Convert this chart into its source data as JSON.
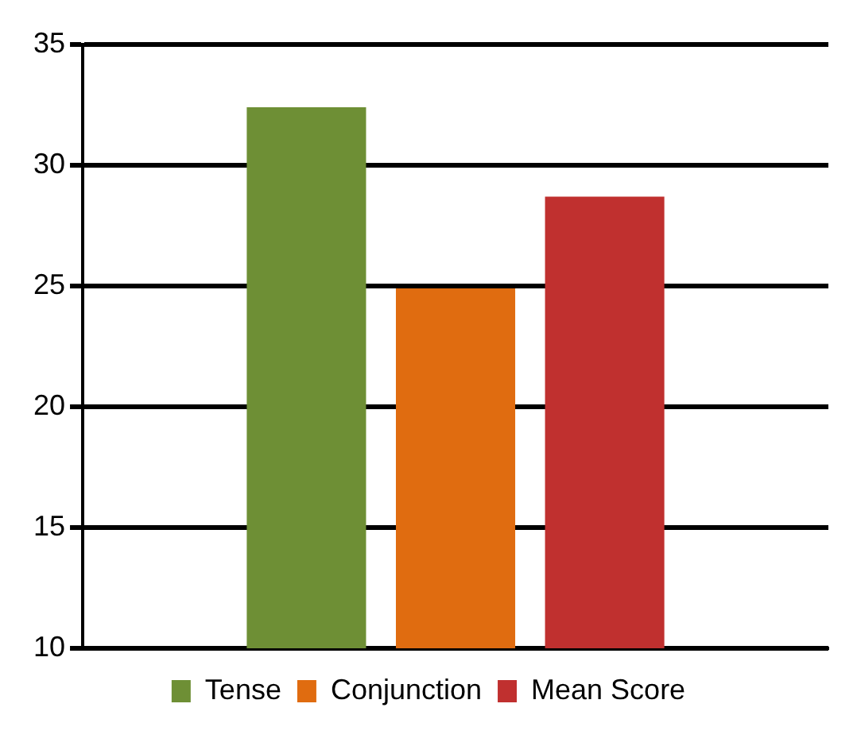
{
  "chart_data": {
    "type": "bar",
    "categories": [
      null
    ],
    "series": [
      {
        "name": "Tense",
        "color": "#6e8f35",
        "values": [
          32.4
        ]
      },
      {
        "name": "Conjunction",
        "color": "#e06c10",
        "values": [
          24.9
        ]
      },
      {
        "name": "Mean Score",
        "color": "#c0302f",
        "values": [
          28.7
        ]
      }
    ],
    "ylim": [
      10,
      35
    ],
    "yticks": [
      10,
      15,
      20,
      25,
      30,
      35
    ],
    "grid": "y",
    "legend": "bottom",
    "tick_labels": "y"
  }
}
